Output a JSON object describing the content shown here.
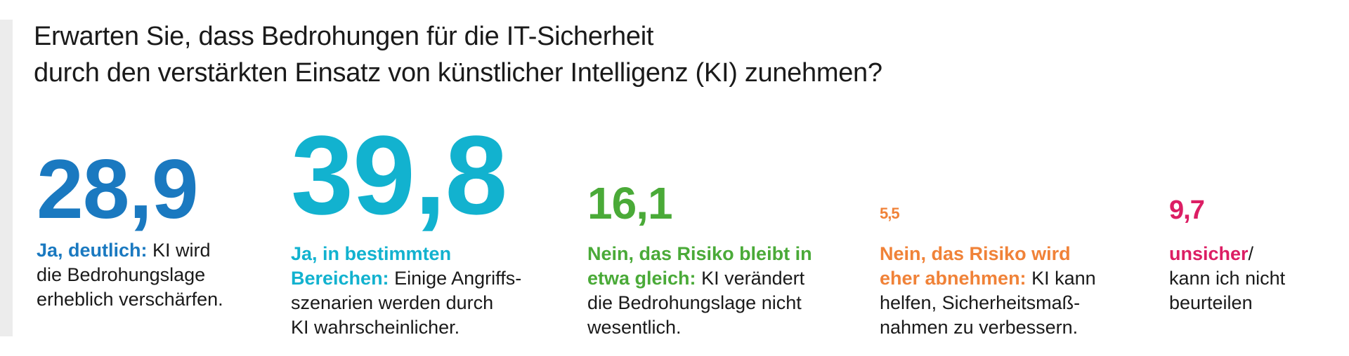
{
  "title_line1": "Erwarten Sie, dass Bedrohungen für die IT-Sicherheit",
  "title_line2": "durch den verstärkten Einsatz von künstlicher Intelligenz (KI) zunehmen?",
  "chart_data": {
    "type": "table",
    "title": "Erwarten Sie, dass Bedrohungen für die IT-Sicherheit durch den verstärkten Einsatz von künstlicher Intelligenz (KI) zunehmen?",
    "categories": [
      "Ja, deutlich",
      "Ja, in bestimmten Bereichen",
      "Nein, das Risiko bleibt in etwa gleich",
      "Nein, das Risiko wird eher abnehmen",
      "unsicher/kann ich nicht beurteilen"
    ],
    "values": [
      28.9,
      39.8,
      16.1,
      5.5,
      9.7
    ],
    "items": [
      {
        "value_label": "28,9",
        "value": 28.9,
        "color": "#1a79c0",
        "lead": "Ja, deutlich:",
        "lines": [
          "KI wird",
          "die Bedrohungslage",
          "erheblich verschärfen."
        ]
      },
      {
        "value_label": "39,8",
        "value": 39.8,
        "color": "#12b2cf",
        "lead_lines": [
          "Ja, in bestimmten",
          "Bereichen:"
        ],
        "lines": [
          "Einige Angriffs-",
          "szenarien werden durch",
          "KI wahrscheinlicher."
        ]
      },
      {
        "value_label": "16,1",
        "value": 16.1,
        "color": "#4aaa38",
        "lead_lines": [
          "Nein, das Risiko bleibt in",
          "etwa gleich:"
        ],
        "lines": [
          "KI verändert",
          "die Bedrohungslage nicht",
          "wesentlich."
        ]
      },
      {
        "value_label": "5,5",
        "value": 5.5,
        "color": "#f08238",
        "lead_lines": [
          "Nein, das Risiko wird",
          "eher abnehmen:"
        ],
        "lines": [
          "KI kann",
          "helfen, Sicherheitsmaß-",
          "nahmen zu verbessern."
        ]
      },
      {
        "value_label": "9,7",
        "value": 9.7,
        "color": "#dc1e64",
        "lead": "unsicher",
        "lines": [
          "/",
          "kann ich nicht",
          "beurteilen"
        ]
      }
    ]
  }
}
